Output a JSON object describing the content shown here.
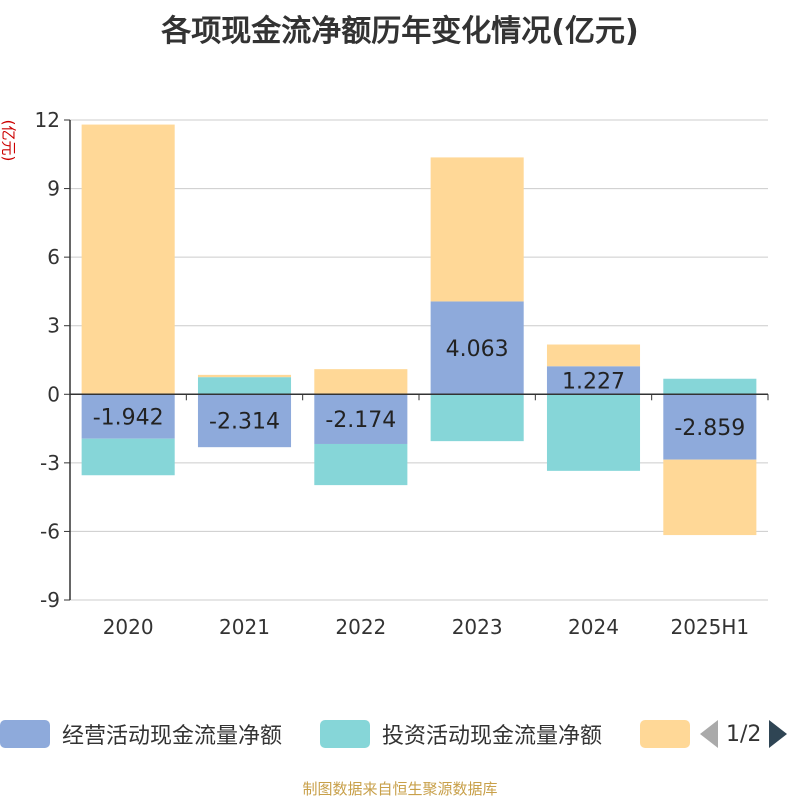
{
  "title": "各项现金流净额历年变化情况(亿元)",
  "unit_label": "(亿元)",
  "source": "制图数据来自恒生聚源数据库",
  "pager": {
    "text": "1/2"
  },
  "chart_data": {
    "type": "bar",
    "stacked": true,
    "categories": [
      "2020",
      "2021",
      "2022",
      "2023",
      "2024",
      "2025H1"
    ],
    "ylim": [
      -9,
      12
    ],
    "yticks": [
      12,
      9,
      6,
      3,
      0,
      -3,
      -6,
      -9
    ],
    "grid": true,
    "legend_position": "bottom",
    "series": [
      {
        "name": "经营活动现金流量净额",
        "color": "#8eaadb",
        "values": [
          -1.942,
          -2.314,
          -2.174,
          4.063,
          1.227,
          -2.859
        ],
        "show_labels": true
      },
      {
        "name": "投资活动现金流量净额",
        "color": "#86d6d8",
        "values": [
          -1.6,
          0.75,
          -1.8,
          -2.05,
          -3.35,
          0.68
        ],
        "show_labels": false
      },
      {
        "name": "",
        "color": "#ffd897",
        "values": [
          11.8,
          0.1,
          1.1,
          6.3,
          0.95,
          -3.3
        ],
        "show_labels": false
      }
    ]
  }
}
